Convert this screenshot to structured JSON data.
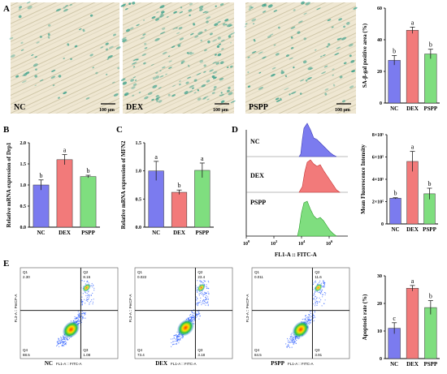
{
  "panel_letters": [
    "A",
    "B",
    "C",
    "D",
    "E"
  ],
  "micrographs": [
    {
      "label": "NC",
      "scale_bar": "100 μm"
    },
    {
      "label": "DEX",
      "scale_bar": "100 μm"
    },
    {
      "label": "PSPP",
      "scale_bar": "100 μm"
    }
  ],
  "colors": {
    "NC": "#7b7bef",
    "DEX": "#f27a7a",
    "PSPP": "#7fde7f",
    "stain": "#3aa08a"
  },
  "chart_data": [
    {
      "id": "sa-gal",
      "type": "bar",
      "categories": [
        "NC",
        "DEX",
        "PSPP"
      ],
      "values": [
        27,
        46,
        31
      ],
      "errors": [
        3,
        2,
        3
      ],
      "significance": [
        "b",
        "a",
        "b"
      ],
      "ylabel": "SA-β-gal positive area (%)",
      "ylim": [
        0,
        60
      ],
      "yticks": [
        "0",
        "20",
        "40",
        "60"
      ]
    },
    {
      "id": "drp1",
      "type": "bar",
      "categories": [
        "NC",
        "DEX",
        "PSPP"
      ],
      "values": [
        1.0,
        1.6,
        1.2
      ],
      "errors": [
        0.12,
        0.12,
        0.03
      ],
      "significance": [
        "b",
        "a",
        "b"
      ],
      "ylabel": "Relative mRNA expression of Drp1",
      "ylim": [
        0,
        2.0
      ],
      "yticks": [
        "0.0",
        "0.5",
        "1.0",
        "1.5",
        "2.0"
      ]
    },
    {
      "id": "mfn2",
      "type": "bar",
      "categories": [
        "NC",
        "DEX",
        "PSPP"
      ],
      "values": [
        1.0,
        0.62,
        1.01
      ],
      "errors": [
        0.17,
        0.04,
        0.13
      ],
      "significance": [
        "a",
        "b",
        "a"
      ],
      "ylabel": "Relative mRNA expression of MFN2",
      "ylim": [
        0,
        1.5
      ],
      "yticks": [
        "0.0",
        "0.5",
        "1.0",
        "1.5"
      ]
    },
    {
      "id": "mfi",
      "type": "bar",
      "categories": [
        "NC",
        "DEX",
        "PSPP"
      ],
      "values": [
        230000,
        560000,
        270000
      ],
      "errors": [
        5000,
        90000,
        50000
      ],
      "significance": [
        "b",
        "a",
        "b"
      ],
      "ylabel": "Mean Fluorescence Intensity",
      "ylim": [
        0,
        800000
      ],
      "yticks": [
        "0",
        "2×10⁵",
        "4×10⁵",
        "6×10⁵",
        "8×10⁵"
      ]
    },
    {
      "id": "apoptosis",
      "type": "bar",
      "categories": [
        "NC",
        "DEX",
        "PSPP"
      ],
      "values": [
        11,
        25.5,
        18.5
      ],
      "errors": [
        2,
        1,
        2.5
      ],
      "significance": [
        "c",
        "a",
        "b"
      ],
      "ylabel": "Apoptosis rate (%)",
      "ylim": [
        0,
        30
      ],
      "yticks": [
        "0",
        "10",
        "20",
        "30"
      ]
    }
  ],
  "histogram": {
    "groups": [
      "NC",
      "DEX",
      "PSPP"
    ],
    "xlabel": "FL1-A :: FITC-A",
    "xticks_base": [
      "10",
      "10",
      "10",
      "10",
      "10"
    ],
    "xticks_exp": [
      "0",
      "2",
      "4",
      "6",
      ""
    ]
  },
  "flow": {
    "ylabel": "FL3-A :: PerCP-A",
    "xlabel": "FL1-A :: FITC-A",
    "plots": [
      {
        "name": "NC",
        "Q1": "2.30",
        "Q2": "8.15",
        "Q4": "88.5",
        "Q3": "1.08"
      },
      {
        "name": "DEX",
        "Q1": "0.022",
        "Q2": "23.4",
        "Q4": "73.4",
        "Q3": "3.18"
      },
      {
        "name": "PSPP",
        "Q1": "0.011",
        "Q2": "11.6",
        "Q4": "84.5",
        "Q3": "3.91"
      }
    ],
    "quad_names": [
      "Q1",
      "Q2",
      "Q4",
      "Q3"
    ]
  }
}
